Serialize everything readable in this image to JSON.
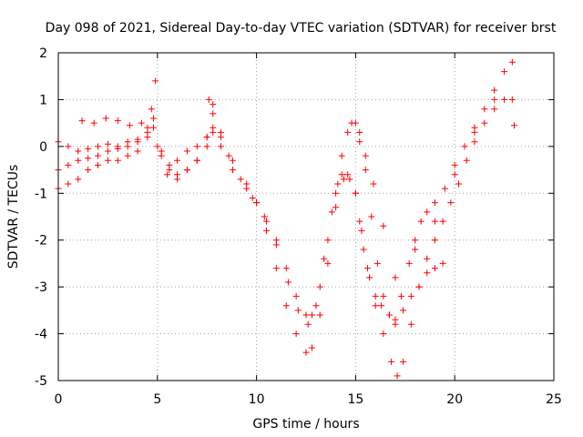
{
  "chart_data": {
    "type": "scatter",
    "title": "Day 098 of 2021, Sidereal Day-to-day VTEC variation (SDTVAR) for receiver brst",
    "xlabel": "GPS time / hours",
    "ylabel": "SDTVAR / TECUs",
    "xlim": [
      0,
      25
    ],
    "ylim": [
      -5,
      2
    ],
    "xticks": [
      0,
      5,
      10,
      15,
      20,
      25
    ],
    "yticks": [
      -5,
      -4,
      -3,
      -2,
      -1,
      0,
      1,
      2
    ],
    "grid": true,
    "marker": "+",
    "color": "#ff0000",
    "series": [
      {
        "x": [
          0.0,
          0.5,
          1.0,
          1.5,
          2.0,
          2.5,
          3.0,
          3.5,
          4.0,
          4.5,
          4.8,
          5.2,
          5.6,
          6.0,
          6.5,
          7.0,
          7.5,
          7.8,
          8.2,
          8.8,
          9.5,
          10.0,
          10.5,
          11.0,
          11.5,
          12.0,
          12.5,
          12.8,
          13.2,
          13.6,
          14.0,
          14.3,
          14.6,
          14.8,
          15.0,
          15.2,
          15.5,
          15.8,
          16.1,
          16.4,
          16.7,
          17.0,
          17.3,
          17.7,
          18.0,
          18.3,
          18.6,
          19.0,
          19.5,
          20.0,
          20.5,
          21.0,
          21.5,
          22.0,
          22.5,
          22.9
        ],
        "y": [
          0.1,
          0.0,
          -0.1,
          -0.05,
          0.0,
          0.05,
          0.0,
          0.1,
          0.15,
          0.4,
          0.6,
          -0.1,
          -0.4,
          -0.3,
          -0.1,
          0.0,
          0.2,
          0.4,
          0.0,
          -0.5,
          -0.9,
          -1.2,
          -1.6,
          -2.0,
          -2.6,
          -3.2,
          -3.6,
          -3.6,
          -3.0,
          -2.0,
          -1.0,
          -0.2,
          0.3,
          0.5,
          0.5,
          0.3,
          -0.5,
          -1.5,
          -2.5,
          -3.2,
          -3.6,
          -3.7,
          -3.2,
          -2.5,
          -2.0,
          -1.6,
          -1.4,
          -1.2,
          -0.9,
          -0.4,
          0.0,
          0.4,
          0.8,
          1.2,
          1.6,
          1.8
        ]
      },
      {
        "x": [
          0.0,
          0.5,
          1.0,
          1.5,
          2.0,
          2.5,
          3.0,
          3.5,
          4.0,
          4.5,
          5.0,
          5.5,
          6.0,
          6.5,
          7.0,
          7.5,
          7.8,
          8.2,
          8.8,
          9.5,
          10.0,
          10.5,
          11.0,
          11.5,
          12.0,
          12.5,
          12.8,
          13.2,
          13.6,
          14.0,
          14.3,
          14.6,
          15.0,
          15.3,
          15.6,
          16.0,
          16.4,
          16.8,
          17.1,
          17.4,
          17.8,
          18.2,
          18.6,
          19.0,
          19.4,
          19.8,
          20.2,
          20.6,
          21.0,
          21.5,
          22.0,
          22.5,
          22.9
        ],
        "y": [
          -0.9,
          -0.8,
          -0.7,
          -0.5,
          -0.4,
          -0.3,
          -0.3,
          -0.2,
          -0.1,
          0.2,
          0.0,
          -0.6,
          -0.7,
          -0.5,
          -0.3,
          0.0,
          0.3,
          0.2,
          -0.3,
          -0.8,
          -1.2,
          -1.8,
          -2.6,
          -3.4,
          -4.0,
          -4.4,
          -4.3,
          -3.6,
          -2.5,
          -1.3,
          -0.6,
          -0.6,
          -1.0,
          -1.8,
          -2.6,
          -3.4,
          -4.0,
          -4.6,
          -4.9,
          -4.6,
          -3.8,
          -3.0,
          -2.4,
          -2.0,
          -1.6,
          -1.2,
          -0.8,
          -0.3,
          0.1,
          0.5,
          0.8,
          1.0,
          1.0
        ]
      },
      {
        "x": [
          0.0,
          0.5,
          1.0,
          1.5,
          2.0,
          2.5,
          3.0,
          3.5,
          4.0,
          4.5,
          4.8,
          5.2,
          5.6,
          6.0,
          6.5,
          7.0,
          7.5,
          7.8,
          8.2,
          8.6,
          9.2,
          9.8,
          10.4,
          11.0,
          11.6,
          12.1,
          12.6,
          13.0,
          13.4,
          13.8,
          14.1,
          14.4,
          14.7,
          15.0,
          15.2,
          15.4,
          15.7,
          16.0,
          16.3,
          16.7,
          17.0,
          17.4,
          17.8,
          18.2,
          18.6,
          19.0,
          19.4
        ],
        "y": [
          -0.5,
          -0.4,
          -0.3,
          -0.25,
          -0.2,
          -0.1,
          -0.05,
          0.0,
          0.1,
          0.3,
          0.4,
          -0.2,
          -0.5,
          -0.6,
          -0.5,
          -0.3,
          0.2,
          0.9,
          0.3,
          -0.2,
          -0.7,
          -1.1,
          -1.5,
          -2.1,
          -2.9,
          -3.5,
          -3.8,
          -3.4,
          -2.4,
          -1.4,
          -0.8,
          -0.7,
          -0.7,
          -1.0,
          -1.6,
          -2.2,
          -2.8,
          -3.2,
          -3.4,
          -3.6,
          -3.8,
          -3.5,
          -3.2,
          -3.0,
          -2.7,
          -2.6,
          -2.5
        ]
      },
      {
        "x": [
          1.2,
          1.8,
          2.4,
          3.0,
          3.6,
          4.2,
          4.7,
          4.9,
          7.6,
          7.8,
          15.2,
          15.5,
          15.9,
          16.4,
          17.0,
          18.0,
          19.0,
          20.0,
          21.0,
          22.0,
          23.0
        ],
        "y": [
          0.55,
          0.5,
          0.6,
          0.55,
          0.45,
          0.5,
          0.8,
          1.4,
          1.0,
          0.7,
          0.1,
          -0.2,
          -0.8,
          -1.7,
          -2.8,
          -2.2,
          -1.6,
          -0.6,
          0.3,
          1.0,
          0.45
        ]
      }
    ]
  }
}
